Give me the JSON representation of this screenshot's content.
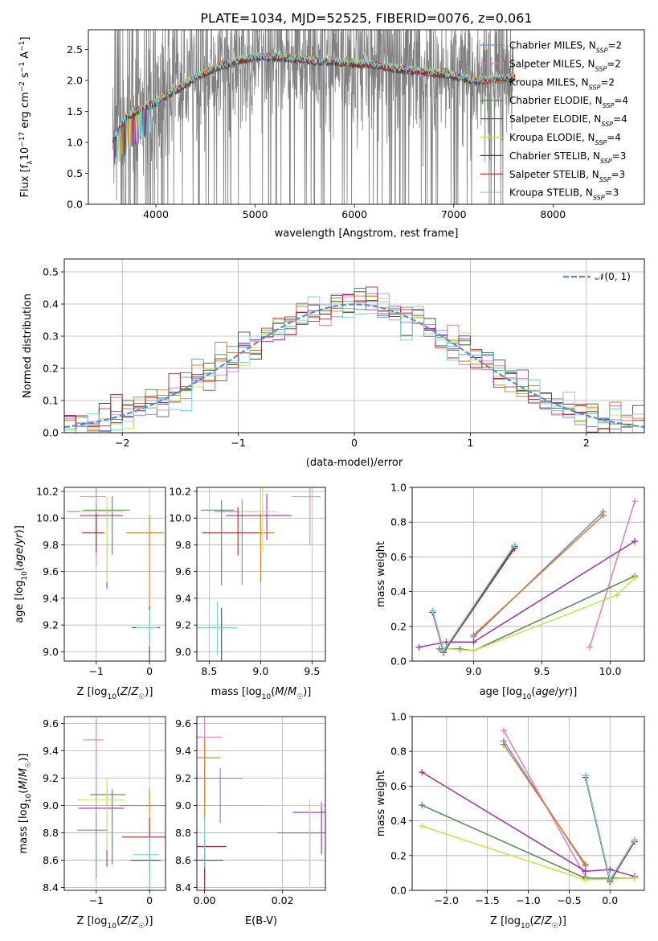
{
  "figure_title": "PLATE=1034, MJD=52525, FIBERID=0076, z=0.061",
  "colors": {
    "Chabrier MILES": "#6b8cd8",
    "Salpeter MILES": "#e67bbd",
    "Kroupa MILES": "#e0771e",
    "Chabrier ELODIE": "#4f8a4f",
    "Salpeter ELODIE": "#9a2fb0",
    "Kroupa ELODIE": "#c8e34c",
    "Chabrier STELIB": "#444444",
    "Salpeter STELIB": "#b22222",
    "Kroupa STELIB": "#6fd4da",
    "data": "#808080",
    "normal": "#5b8ad6"
  },
  "chart_data": [
    {
      "type": "line",
      "title": "PLATE=1034, MJD=52525, FIBERID=0076, z=0.061",
      "xlabel": "wavelength [Angstrom, rest frame]",
      "ylabel": "Flux [f_λ 10^-17 erg cm^-2 s^-1 A^-1]",
      "xlim": [
        3320,
        8920
      ],
      "ylim": [
        0,
        2.82
      ],
      "xticks": [
        "4000",
        "5000",
        "6000",
        "7000",
        "8000"
      ],
      "yticks": [
        "0.0",
        "0.5",
        "1.0",
        "1.5",
        "2.0",
        "2.5"
      ],
      "legend": [
        {
          "name": "Chabrier MILES",
          "nssp": "2"
        },
        {
          "name": "Salpeter MILES",
          "nssp": "2"
        },
        {
          "name": "Kroupa MILES",
          "nssp": "2"
        },
        {
          "name": "Chabrier ELODIE",
          "nssp": "4"
        },
        {
          "name": "Salpeter ELODIE",
          "nssp": "4"
        },
        {
          "name": "Kroupa ELODIE",
          "nssp": "4"
        },
        {
          "name": "Chabrier STELIB",
          "nssp": "3"
        },
        {
          "name": "Salpeter STELIB",
          "nssp": "3"
        },
        {
          "name": "Kroupa STELIB",
          "nssp": "3"
        }
      ],
      "model_continuum": {
        "x": [
          3570,
          3700,
          3850,
          4000,
          4200,
          4400,
          4600,
          4800,
          5000,
          5200,
          5400,
          5600,
          5800,
          6000,
          6200,
          6400,
          6600,
          6800,
          7000,
          7200,
          7400,
          7600
        ],
        "y": [
          1.05,
          1.4,
          1.55,
          1.65,
          1.85,
          2.05,
          2.2,
          2.3,
          2.38,
          2.38,
          2.35,
          2.32,
          2.3,
          2.28,
          2.25,
          2.2,
          2.15,
          2.12,
          2.08,
          2.0,
          2.02,
          2.05
        ]
      }
    },
    {
      "type": "line",
      "xlabel": "(data-model)/error",
      "ylabel": "Normed distribution",
      "xlim": [
        -2.5,
        2.5
      ],
      "ylim": [
        0,
        0.54
      ],
      "xticks": [
        "−2",
        "−1",
        "0",
        "1",
        "2"
      ],
      "yticks": [
        "0.0",
        "0.1",
        "0.2",
        "0.3",
        "0.4",
        "0.5"
      ],
      "legend_label": "𝒩(0, 1)",
      "histogram_bin_width": 0.1
    },
    {
      "type": "scatter",
      "xlabel": "Z [log10(Z/Z☉)]",
      "ylabel": "age  [log10(age/yr)]",
      "xlim": [
        -1.6,
        0.3
      ],
      "ylim": [
        8.93,
        10.23
      ],
      "xticks": [
        "−1",
        "0"
      ],
      "yticks": [
        "9.0",
        "9.2",
        "9.4",
        "9.6",
        "9.8",
        "10.0",
        "10.2"
      ],
      "points": [
        {
          "model": "Chabrier MILES",
          "x": -1.0,
          "y": 10.05
        },
        {
          "model": "Salpeter MILES",
          "x": -1.0,
          "y": 10.16
        },
        {
          "model": "Kroupa MILES",
          "x": 0.0,
          "y": 9.89
        },
        {
          "model": "Chabrier ELODIE",
          "x": -0.7,
          "y": 10.06
        },
        {
          "model": "Salpeter ELODIE",
          "x": -0.8,
          "y": 10.02
        },
        {
          "model": "Kroupa ELODIE",
          "x": -0.8,
          "y": 10.05
        },
        {
          "model": "Chabrier STELIB",
          "x": 0.0,
          "y": 9.18
        },
        {
          "model": "Salpeter STELIB",
          "x": -1.0,
          "y": 9.89
        },
        {
          "model": "Kroupa STELIB",
          "x": 0.0,
          "y": 9.18
        }
      ]
    },
    {
      "type": "scatter",
      "xlabel": "mass [log10(M/M☉)]",
      "ylabel": "",
      "xlim": [
        8.38,
        9.63
      ],
      "ylim": [
        8.93,
        10.23
      ],
      "xticks": [
        "8.5",
        "9.0",
        "9.5"
      ],
      "yticks": [
        "9.0",
        "9.2",
        "9.4",
        "9.6",
        "9.8",
        "10.0",
        "10.2"
      ],
      "points": [
        {
          "model": "Chabrier MILES",
          "x": 8.82,
          "y": 10.05
        },
        {
          "model": "Salpeter MILES",
          "x": 9.48,
          "y": 10.16
        },
        {
          "model": "Kroupa MILES",
          "x": 9.0,
          "y": 9.89
        },
        {
          "model": "Chabrier ELODIE",
          "x": 8.62,
          "y": 10.06
        },
        {
          "model": "Salpeter ELODIE",
          "x": 9.06,
          "y": 10.02
        },
        {
          "model": "Kroupa ELODIE",
          "x": 9.02,
          "y": 10.05
        },
        {
          "model": "Chabrier STELIB",
          "x": 8.62,
          "y": 9.18
        },
        {
          "model": "Salpeter STELIB",
          "x": 8.78,
          "y": 9.89
        },
        {
          "model": "Kroupa STELIB",
          "x": 8.58,
          "y": 9.18
        }
      ]
    },
    {
      "type": "line",
      "xlabel": "age  [log10(age/yr)]",
      "ylabel": "mass weight",
      "xlim": [
        8.55,
        10.25
      ],
      "ylim": [
        0,
        1.0
      ],
      "xticks": [
        "9.0",
        "9.5",
        "10.0"
      ],
      "yticks": [
        "0.0",
        "0.2",
        "0.4",
        "0.6",
        "0.8",
        "1.0"
      ],
      "series": [
        {
          "model": "Chabrier MILES",
          "x": [
            9.0,
            9.95
          ],
          "y": [
            0.14,
            0.86
          ]
        },
        {
          "model": "Salpeter MILES",
          "x": [
            9.85,
            10.18
          ],
          "y": [
            0.08,
            0.92
          ]
        },
        {
          "model": "Kroupa MILES",
          "x": [
            9.0,
            9.95
          ],
          "y": [
            0.15,
            0.84
          ]
        },
        {
          "model": "Chabrier ELODIE",
          "x": [
            8.75,
            8.9,
            9.0,
            10.18
          ],
          "y": [
            0.07,
            0.07,
            0.06,
            0.49
          ]
        },
        {
          "model": "Salpeter ELODIE",
          "x": [
            8.6,
            8.8,
            9.0,
            10.18
          ],
          "y": [
            0.08,
            0.11,
            0.11,
            0.69
          ]
        },
        {
          "model": "Kroupa ELODIE",
          "x": [
            8.8,
            9.0,
            10.05,
            10.18
          ],
          "y": [
            0.07,
            0.06,
            0.38,
            0.48
          ]
        },
        {
          "model": "Chabrier STELIB",
          "x": [
            8.7,
            8.78,
            9.3
          ],
          "y": [
            0.29,
            0.06,
            0.66
          ]
        },
        {
          "model": "Salpeter STELIB",
          "x": [
            8.7,
            8.78,
            9.3
          ],
          "y": [
            0.28,
            0.05,
            0.65
          ]
        },
        {
          "model": "Kroupa STELIB",
          "x": [
            8.7,
            8.78,
            9.3
          ],
          "y": [
            0.29,
            0.06,
            0.67
          ]
        }
      ]
    },
    {
      "type": "scatter",
      "xlabel": "Z [log10(Z/Z☉)]",
      "ylabel": "mass [log10(M/M☉)]",
      "xlim": [
        -1.6,
        0.3
      ],
      "ylim": [
        8.38,
        9.65
      ],
      "xticks": [
        "−1",
        "0"
      ],
      "yticks": [
        "8.4",
        "8.6",
        "8.8",
        "9.0",
        "9.2",
        "9.4",
        "9.6"
      ],
      "points": [
        {
          "model": "Chabrier MILES",
          "x": -1.0,
          "y": 8.82
        },
        {
          "model": "Salpeter MILES",
          "x": -1.0,
          "y": 9.48
        },
        {
          "model": "Kroupa MILES",
          "x": 0.0,
          "y": 9.0
        },
        {
          "model": "Chabrier ELODIE",
          "x": -0.7,
          "y": 9.08
        },
        {
          "model": "Salpeter ELODIE",
          "x": -0.8,
          "y": 8.98
        },
        {
          "model": "Kroupa ELODIE",
          "x": -0.8,
          "y": 9.04
        },
        {
          "model": "Chabrier STELIB",
          "x": 0.0,
          "y": 8.6
        },
        {
          "model": "Salpeter STELIB",
          "x": 0.0,
          "y": 8.77
        },
        {
          "model": "Kroupa STELIB",
          "x": 0.0,
          "y": 8.64
        }
      ]
    },
    {
      "type": "scatter",
      "xlabel": "E(B-V)",
      "ylabel": "",
      "xlim": [
        -0.002,
        0.031
      ],
      "ylim": [
        8.38,
        9.65
      ],
      "xticks": [
        "0.00",
        "0.02"
      ],
      "yticks": [
        "8.4",
        "8.6",
        "8.8",
        "9.0",
        "9.2",
        "9.4",
        "9.6"
      ],
      "points": [
        {
          "model": "Chabrier MILES",
          "x": 0.004,
          "y": 9.2
        },
        {
          "model": "Salpeter MILES",
          "x": 0.0,
          "y": 9.5
        },
        {
          "model": "Kroupa MILES",
          "x": 0.0,
          "y": 9.35
        },
        {
          "model": "Chabrier ELODIE",
          "x": 0.027,
          "y": 8.8
        },
        {
          "model": "Salpeter ELODIE",
          "x": 0.03,
          "y": 8.95
        },
        {
          "model": "Kroupa ELODIE",
          "x": 0.027,
          "y": 9.0
        },
        {
          "model": "Chabrier STELIB",
          "x": 0.0,
          "y": 8.6
        },
        {
          "model": "Salpeter STELIB",
          "x": 0.0,
          "y": 8.7
        },
        {
          "model": "Kroupa STELIB",
          "x": 0.0,
          "y": 8.8
        }
      ]
    },
    {
      "type": "line",
      "xlabel": "Z [log10(Z/Z☉)]",
      "ylabel": "mass weight",
      "xlim": [
        -2.42,
        0.42
      ],
      "ylim": [
        0,
        1.0
      ],
      "xticks": [
        "−2.0",
        "−1.5",
        "−1.0",
        "−0.5",
        "0.0"
      ],
      "yticks": [
        "0.0",
        "0.2",
        "0.4",
        "0.6",
        "0.8",
        "1.0"
      ],
      "series": [
        {
          "model": "Chabrier MILES",
          "x": [
            -1.3,
            -0.3
          ],
          "y": [
            0.86,
            0.14
          ]
        },
        {
          "model": "Salpeter MILES",
          "x": [
            -1.3,
            -0.3
          ],
          "y": [
            0.92,
            0.08
          ]
        },
        {
          "model": "Kroupa MILES",
          "x": [
            -1.3,
            -0.3
          ],
          "y": [
            0.84,
            0.15
          ]
        },
        {
          "model": "Chabrier ELODIE",
          "x": [
            -2.3,
            -0.3,
            0.3
          ],
          "y": [
            0.49,
            0.07,
            0.07
          ]
        },
        {
          "model": "Salpeter ELODIE",
          "x": [
            -2.3,
            -0.3,
            0.0,
            0.3
          ],
          "y": [
            0.68,
            0.11,
            0.12,
            0.08
          ]
        },
        {
          "model": "Kroupa ELODIE",
          "x": [
            -2.3,
            -0.3,
            0.3
          ],
          "y": [
            0.37,
            0.06,
            0.07
          ]
        },
        {
          "model": "Chabrier STELIB",
          "x": [
            -0.3,
            0.0,
            0.3
          ],
          "y": [
            0.66,
            0.06,
            0.29
          ]
        },
        {
          "model": "Salpeter STELIB",
          "x": [
            -0.3,
            0.0,
            0.3
          ],
          "y": [
            0.65,
            0.05,
            0.28
          ]
        },
        {
          "model": "Kroupa STELIB",
          "x": [
            -0.3,
            0.0,
            0.3
          ],
          "y": [
            0.66,
            0.06,
            0.29
          ]
        }
      ]
    }
  ]
}
